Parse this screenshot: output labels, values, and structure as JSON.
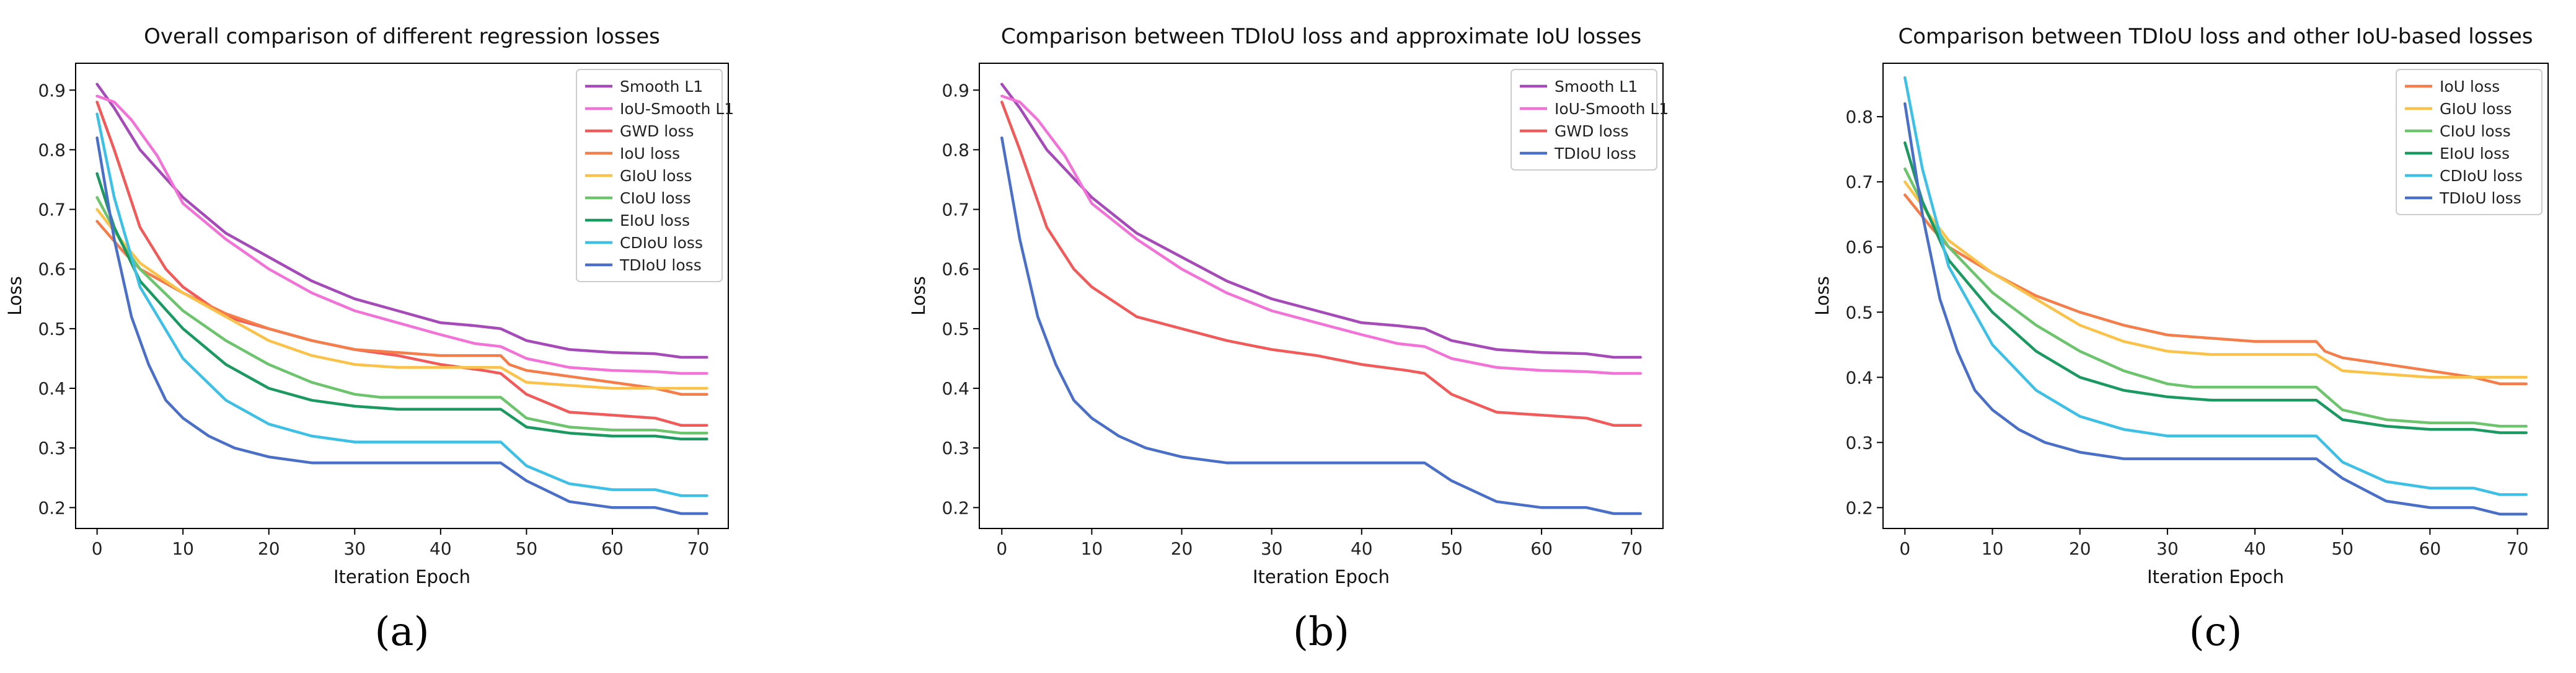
{
  "figure": {
    "panels": [
      "(a)",
      "(b)",
      "(c)"
    ]
  },
  "chart_data": [
    {
      "type": "line",
      "title": "Overall comparison of different regression losses",
      "xlabel": "Iteration Epoch",
      "ylabel": "Loss",
      "xlim": [
        -2.5,
        73.5
      ],
      "ylim": [
        0.165,
        0.945
      ],
      "xticks": [
        0,
        10,
        20,
        30,
        40,
        50,
        60,
        70
      ],
      "yticks": [
        0.2,
        0.3,
        0.4,
        0.5,
        0.6,
        0.7,
        0.8,
        0.9
      ],
      "legend_position": "top-right",
      "caption": "(a)",
      "series": [
        {
          "name": "Smooth L1",
          "color": "#a64ab9",
          "x": [
            0,
            2,
            5,
            10,
            15,
            20,
            25,
            30,
            35,
            40,
            44,
            47,
            50,
            55,
            60,
            65,
            68,
            71
          ],
          "values": [
            0.91,
            0.87,
            0.8,
            0.72,
            0.66,
            0.62,
            0.58,
            0.55,
            0.53,
            0.51,
            0.505,
            0.5,
            0.48,
            0.465,
            0.46,
            0.458,
            0.452,
            0.452
          ]
        },
        {
          "name": "IoU-Smooth L1",
          "color": "#f272d8",
          "x": [
            0,
            2,
            4,
            7,
            10,
            15,
            20,
            25,
            30,
            35,
            40,
            44,
            47,
            50,
            55,
            60,
            65,
            68,
            71
          ],
          "values": [
            0.89,
            0.88,
            0.85,
            0.79,
            0.71,
            0.65,
            0.6,
            0.56,
            0.53,
            0.51,
            0.49,
            0.475,
            0.47,
            0.45,
            0.435,
            0.43,
            0.428,
            0.425,
            0.425
          ]
        },
        {
          "name": "GWD loss",
          "color": "#f25a5a",
          "x": [
            0,
            2,
            5,
            8,
            10,
            15,
            20,
            25,
            30,
            35,
            40,
            45,
            47,
            50,
            55,
            60,
            65,
            68,
            71
          ],
          "values": [
            0.88,
            0.8,
            0.67,
            0.6,
            0.57,
            0.52,
            0.5,
            0.48,
            0.465,
            0.455,
            0.44,
            0.43,
            0.425,
            0.39,
            0.36,
            0.355,
            0.35,
            0.338,
            0.338
          ]
        },
        {
          "name": "IoU loss",
          "color": "#f47d4a",
          "x": [
            0,
            3,
            5,
            10,
            15,
            20,
            25,
            30,
            35,
            40,
            47,
            48,
            50,
            55,
            60,
            65,
            68,
            71
          ],
          "values": [
            0.68,
            0.63,
            0.6,
            0.56,
            0.525,
            0.5,
            0.48,
            0.465,
            0.46,
            0.455,
            0.455,
            0.44,
            0.43,
            0.42,
            0.41,
            0.4,
            0.39,
            0.39
          ]
        },
        {
          "name": "GIoU loss",
          "color": "#fbc24a",
          "x": [
            0,
            3,
            5,
            10,
            15,
            20,
            25,
            30,
            35,
            40,
            47,
            50,
            55,
            60,
            65,
            68,
            71
          ],
          "values": [
            0.7,
            0.645,
            0.61,
            0.56,
            0.52,
            0.48,
            0.455,
            0.44,
            0.435,
            0.435,
            0.435,
            0.41,
            0.405,
            0.4,
            0.4,
            0.4,
            0.4
          ]
        },
        {
          "name": "CIoU loss",
          "color": "#6cc46c",
          "x": [
            0,
            3,
            5,
            10,
            15,
            20,
            25,
            30,
            33,
            40,
            47,
            50,
            55,
            60,
            65,
            68,
            71
          ],
          "values": [
            0.72,
            0.64,
            0.6,
            0.53,
            0.48,
            0.44,
            0.41,
            0.39,
            0.385,
            0.385,
            0.385,
            0.35,
            0.335,
            0.33,
            0.33,
            0.325,
            0.325
          ]
        },
        {
          "name": "EIoU loss",
          "color": "#1a9a60",
          "x": [
            0,
            2,
            5,
            10,
            15,
            20,
            25,
            30,
            35,
            40,
            47,
            50,
            55,
            60,
            65,
            68,
            71
          ],
          "values": [
            0.76,
            0.67,
            0.58,
            0.5,
            0.44,
            0.4,
            0.38,
            0.37,
            0.365,
            0.365,
            0.365,
            0.335,
            0.325,
            0.32,
            0.32,
            0.315,
            0.315
          ]
        },
        {
          "name": "CDIoU loss",
          "color": "#3cc0e6",
          "x": [
            0,
            2,
            5,
            10,
            15,
            20,
            25,
            30,
            35,
            40,
            47,
            50,
            55,
            60,
            65,
            68,
            71
          ],
          "values": [
            0.86,
            0.72,
            0.57,
            0.45,
            0.38,
            0.34,
            0.32,
            0.31,
            0.31,
            0.31,
            0.31,
            0.27,
            0.24,
            0.23,
            0.23,
            0.22,
            0.22
          ]
        },
        {
          "name": "TDIoU loss",
          "color": "#4a6fc9",
          "x": [
            0,
            2,
            4,
            6,
            8,
            10,
            13,
            16,
            20,
            25,
            30,
            35,
            40,
            47,
            50,
            55,
            60,
            65,
            68,
            71
          ],
          "values": [
            0.82,
            0.65,
            0.52,
            0.44,
            0.38,
            0.35,
            0.32,
            0.3,
            0.285,
            0.275,
            0.275,
            0.275,
            0.275,
            0.275,
            0.245,
            0.21,
            0.2,
            0.2,
            0.19,
            0.19
          ]
        }
      ]
    },
    {
      "type": "line",
      "title": "Comparison between TDIoU loss and approximate IoU losses",
      "xlabel": "Iteration Epoch",
      "ylabel": "Loss",
      "xlim": [
        -2.5,
        73.5
      ],
      "ylim": [
        0.165,
        0.945
      ],
      "xticks": [
        0,
        10,
        20,
        30,
        40,
        50,
        60,
        70
      ],
      "yticks": [
        0.2,
        0.3,
        0.4,
        0.5,
        0.6,
        0.7,
        0.8,
        0.9
      ],
      "legend_position": "top-right",
      "caption": "(b)",
      "series": [
        {
          "name": "Smooth L1",
          "color": "#a64ab9",
          "x": [
            0,
            2,
            5,
            10,
            15,
            20,
            25,
            30,
            35,
            40,
            44,
            47,
            50,
            55,
            60,
            65,
            68,
            71
          ],
          "values": [
            0.91,
            0.87,
            0.8,
            0.72,
            0.66,
            0.62,
            0.58,
            0.55,
            0.53,
            0.51,
            0.505,
            0.5,
            0.48,
            0.465,
            0.46,
            0.458,
            0.452,
            0.452
          ]
        },
        {
          "name": "IoU-Smooth L1",
          "color": "#f272d8",
          "x": [
            0,
            2,
            4,
            7,
            10,
            15,
            20,
            25,
            30,
            35,
            40,
            44,
            47,
            50,
            55,
            60,
            65,
            68,
            71
          ],
          "values": [
            0.89,
            0.88,
            0.85,
            0.79,
            0.71,
            0.65,
            0.6,
            0.56,
            0.53,
            0.51,
            0.49,
            0.475,
            0.47,
            0.45,
            0.435,
            0.43,
            0.428,
            0.425,
            0.425
          ]
        },
        {
          "name": "GWD loss",
          "color": "#f25a5a",
          "x": [
            0,
            2,
            5,
            8,
            10,
            15,
            20,
            25,
            30,
            35,
            40,
            45,
            47,
            50,
            55,
            60,
            65,
            68,
            71
          ],
          "values": [
            0.88,
            0.8,
            0.67,
            0.6,
            0.57,
            0.52,
            0.5,
            0.48,
            0.465,
            0.455,
            0.44,
            0.43,
            0.425,
            0.39,
            0.36,
            0.355,
            0.35,
            0.338,
            0.338
          ]
        },
        {
          "name": "TDIoU loss",
          "color": "#4a6fc9",
          "x": [
            0,
            2,
            4,
            6,
            8,
            10,
            13,
            16,
            20,
            25,
            30,
            35,
            40,
            47,
            50,
            55,
            60,
            65,
            68,
            71
          ],
          "values": [
            0.82,
            0.65,
            0.52,
            0.44,
            0.38,
            0.35,
            0.32,
            0.3,
            0.285,
            0.275,
            0.275,
            0.275,
            0.275,
            0.275,
            0.245,
            0.21,
            0.2,
            0.2,
            0.19,
            0.19
          ]
        }
      ]
    },
    {
      "type": "line",
      "title": "Comparison between TDIoU loss and other IoU-based losses",
      "xlabel": "Iteration Epoch",
      "ylabel": "Loss",
      "xlim": [
        -2.5,
        73.5
      ],
      "ylim": [
        0.168,
        0.882
      ],
      "xticks": [
        0,
        10,
        20,
        30,
        40,
        50,
        60,
        70
      ],
      "yticks": [
        0.2,
        0.3,
        0.4,
        0.5,
        0.6,
        0.7,
        0.8
      ],
      "legend_position": "top-right",
      "caption": "(c)",
      "series": [
        {
          "name": "IoU loss",
          "color": "#f47d4a",
          "x": [
            0,
            3,
            5,
            10,
            15,
            20,
            25,
            30,
            35,
            40,
            47,
            48,
            50,
            55,
            60,
            65,
            68,
            71
          ],
          "values": [
            0.68,
            0.63,
            0.6,
            0.56,
            0.525,
            0.5,
            0.48,
            0.465,
            0.46,
            0.455,
            0.455,
            0.44,
            0.43,
            0.42,
            0.41,
            0.4,
            0.39,
            0.39
          ]
        },
        {
          "name": "GIoU loss",
          "color": "#fbc24a",
          "x": [
            0,
            3,
            5,
            10,
            15,
            20,
            25,
            30,
            35,
            40,
            47,
            50,
            55,
            60,
            65,
            68,
            71
          ],
          "values": [
            0.7,
            0.645,
            0.61,
            0.56,
            0.52,
            0.48,
            0.455,
            0.44,
            0.435,
            0.435,
            0.435,
            0.41,
            0.405,
            0.4,
            0.4,
            0.4,
            0.4
          ]
        },
        {
          "name": "CIoU loss",
          "color": "#6cc46c",
          "x": [
            0,
            3,
            5,
            10,
            15,
            20,
            25,
            30,
            33,
            40,
            47,
            50,
            55,
            60,
            65,
            68,
            71
          ],
          "values": [
            0.72,
            0.64,
            0.6,
            0.53,
            0.48,
            0.44,
            0.41,
            0.39,
            0.385,
            0.385,
            0.385,
            0.35,
            0.335,
            0.33,
            0.33,
            0.325,
            0.325
          ]
        },
        {
          "name": "EIoU loss",
          "color": "#1a9a60",
          "x": [
            0,
            2,
            5,
            10,
            15,
            20,
            25,
            30,
            35,
            40,
            47,
            50,
            55,
            60,
            65,
            68,
            71
          ],
          "values": [
            0.76,
            0.67,
            0.58,
            0.5,
            0.44,
            0.4,
            0.38,
            0.37,
            0.365,
            0.365,
            0.365,
            0.335,
            0.325,
            0.32,
            0.32,
            0.315,
            0.315
          ]
        },
        {
          "name": "CDIoU loss",
          "color": "#3cc0e6",
          "x": [
            0,
            2,
            5,
            10,
            15,
            20,
            25,
            30,
            35,
            40,
            47,
            50,
            55,
            60,
            65,
            68,
            71
          ],
          "values": [
            0.86,
            0.72,
            0.57,
            0.45,
            0.38,
            0.34,
            0.32,
            0.31,
            0.31,
            0.31,
            0.31,
            0.27,
            0.24,
            0.23,
            0.23,
            0.22,
            0.22
          ]
        },
        {
          "name": "TDIoU loss",
          "color": "#4a6fc9",
          "x": [
            0,
            2,
            4,
            6,
            8,
            10,
            13,
            16,
            20,
            25,
            30,
            35,
            40,
            47,
            50,
            55,
            60,
            65,
            68,
            71
          ],
          "values": [
            0.82,
            0.65,
            0.52,
            0.44,
            0.38,
            0.35,
            0.32,
            0.3,
            0.285,
            0.275,
            0.275,
            0.275,
            0.275,
            0.275,
            0.245,
            0.21,
            0.2,
            0.2,
            0.19,
            0.19
          ]
        }
      ]
    }
  ]
}
